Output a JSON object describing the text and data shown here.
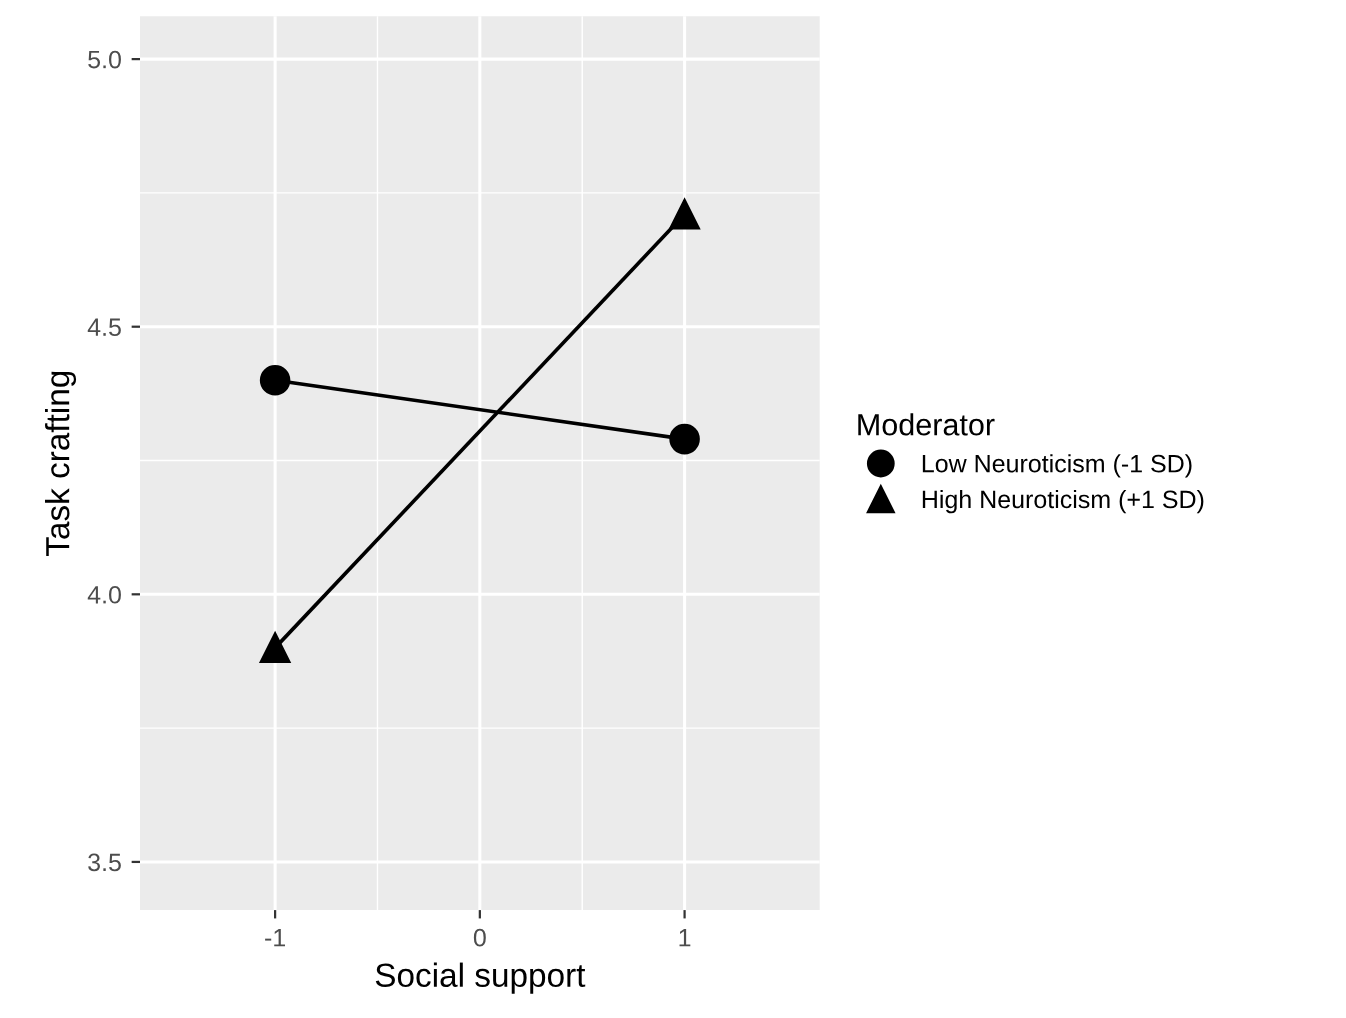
{
  "chart_data": {
    "type": "line",
    "xlabel": "Social support",
    "ylabel": "Task crafting",
    "legend_title": "Moderator",
    "x": [
      -1,
      1
    ],
    "series": [
      {
        "name": "Low Neuroticism (-1 SD)",
        "color": "#000000",
        "marker": "circle",
        "values": [
          4.4,
          4.29
        ]
      },
      {
        "name": "High Neuroticism (+1 SD)",
        "color": "#000000",
        "marker": "triangle",
        "values": [
          3.9,
          4.71
        ]
      }
    ],
    "xlim": [
      -1.66,
      1.66
    ],
    "xticks": [
      -1,
      0,
      1
    ],
    "ylim": [
      3.41,
      5.08
    ],
    "yticks": [
      3.5,
      {
        "value": 4,
        "label": "4.0"
      },
      4.5,
      {
        "value": 5,
        "label": "5.0"
      }
    ],
    "grid": true,
    "legend": "right",
    "line_style": "solid"
  }
}
